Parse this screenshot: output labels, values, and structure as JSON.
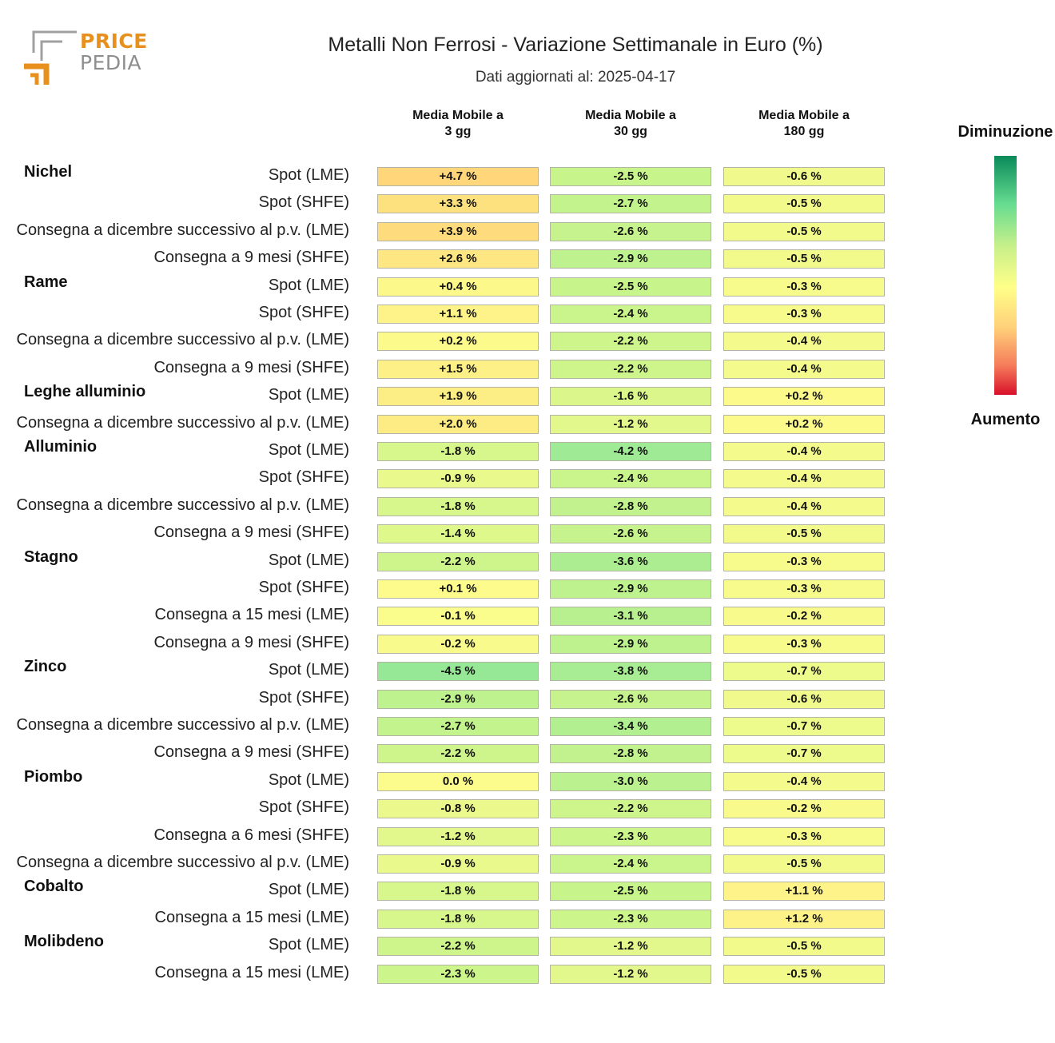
{
  "logo": {
    "price": "PRICE",
    "pedia": "PEDIA"
  },
  "title": "Metalli Non Ferrosi - Variazione Settimanale in Euro (%)",
  "subtitle": "Dati aggiornati al: 2025-04-17",
  "legend": {
    "top": "Diminuzione",
    "bottom": "Aumento"
  },
  "chart_data": {
    "type": "table",
    "columns": [
      [
        "Media Mobile a",
        "3 gg"
      ],
      [
        "Media Mobile a",
        "30 gg"
      ],
      [
        "Media Mobile a",
        "180 gg"
      ]
    ],
    "groups": [
      {
        "name": "Nichel",
        "rows": [
          {
            "label": "Spot (LME)",
            "values": [
              4.7,
              -2.5,
              -0.6
            ],
            "display": [
              "+4.7 %",
              "-2.5 %",
              "-0.6 %"
            ]
          },
          {
            "label": "Spot (SHFE)",
            "values": [
              3.3,
              -2.7,
              -0.5
            ],
            "display": [
              "+3.3 %",
              "-2.7 %",
              "-0.5 %"
            ]
          },
          {
            "label": "Consegna a dicembre successivo al p.v. (LME)",
            "values": [
              3.9,
              -2.6,
              -0.5
            ],
            "display": [
              "+3.9 %",
              "-2.6 %",
              "-0.5 %"
            ]
          },
          {
            "label": "Consegna a 9 mesi (SHFE)",
            "values": [
              2.6,
              -2.9,
              -0.5
            ],
            "display": [
              "+2.6 %",
              "-2.9 %",
              "-0.5 %"
            ]
          }
        ]
      },
      {
        "name": "Rame",
        "rows": [
          {
            "label": "Spot (LME)",
            "values": [
              0.4,
              -2.5,
              -0.3
            ],
            "display": [
              "+0.4 %",
              "-2.5 %",
              "-0.3 %"
            ]
          },
          {
            "label": "Spot (SHFE)",
            "values": [
              1.1,
              -2.4,
              -0.3
            ],
            "display": [
              "+1.1 %",
              "-2.4 %",
              "-0.3 %"
            ]
          },
          {
            "label": "Consegna a dicembre successivo al p.v. (LME)",
            "values": [
              0.2,
              -2.2,
              -0.4
            ],
            "display": [
              "+0.2 %",
              "-2.2 %",
              "-0.4 %"
            ]
          },
          {
            "label": "Consegna a 9 mesi (SHFE)",
            "values": [
              1.5,
              -2.2,
              -0.4
            ],
            "display": [
              "+1.5 %",
              "-2.2 %",
              "-0.4 %"
            ]
          }
        ]
      },
      {
        "name": "Leghe alluminio",
        "rows": [
          {
            "label": "Spot (LME)",
            "values": [
              1.9,
              -1.6,
              0.2
            ],
            "display": [
              "+1.9 %",
              "-1.6 %",
              "+0.2 %"
            ]
          },
          {
            "label": "Consegna a dicembre successivo al p.v. (LME)",
            "values": [
              2.0,
              -1.2,
              0.2
            ],
            "display": [
              "+2.0 %",
              "-1.2 %",
              "+0.2 %"
            ]
          }
        ]
      },
      {
        "name": "Alluminio",
        "rows": [
          {
            "label": "Spot (LME)",
            "values": [
              -1.8,
              -4.2,
              -0.4
            ],
            "display": [
              "-1.8 %",
              "-4.2 %",
              "-0.4 %"
            ]
          },
          {
            "label": "Spot (SHFE)",
            "values": [
              -0.9,
              -2.4,
              -0.4
            ],
            "display": [
              "-0.9 %",
              "-2.4 %",
              "-0.4 %"
            ]
          },
          {
            "label": "Consegna a dicembre successivo al p.v. (LME)",
            "values": [
              -1.8,
              -2.8,
              -0.4
            ],
            "display": [
              "-1.8 %",
              "-2.8 %",
              "-0.4 %"
            ]
          },
          {
            "label": "Consegna a 9 mesi (SHFE)",
            "values": [
              -1.4,
              -2.6,
              -0.5
            ],
            "display": [
              "-1.4 %",
              "-2.6 %",
              "-0.5 %"
            ]
          }
        ]
      },
      {
        "name": "Stagno",
        "rows": [
          {
            "label": "Spot (LME)",
            "values": [
              -2.2,
              -3.6,
              -0.3
            ],
            "display": [
              "-2.2 %",
              "-3.6 %",
              "-0.3 %"
            ]
          },
          {
            "label": "Spot (SHFE)",
            "values": [
              0.1,
              -2.9,
              -0.3
            ],
            "display": [
              "+0.1 %",
              "-2.9 %",
              "-0.3 %"
            ]
          },
          {
            "label": "Consegna a 15 mesi (LME)",
            "values": [
              -0.1,
              -3.1,
              -0.2
            ],
            "display": [
              "-0.1 %",
              "-3.1 %",
              "-0.2 %"
            ]
          },
          {
            "label": "Consegna a 9 mesi (SHFE)",
            "values": [
              -0.2,
              -2.9,
              -0.3
            ],
            "display": [
              "-0.2 %",
              "-2.9 %",
              "-0.3 %"
            ]
          }
        ]
      },
      {
        "name": "Zinco",
        "rows": [
          {
            "label": "Spot (LME)",
            "values": [
              -4.5,
              -3.8,
              -0.7
            ],
            "display": [
              "-4.5 %",
              "-3.8 %",
              "-0.7 %"
            ]
          },
          {
            "label": "Spot (SHFE)",
            "values": [
              -2.9,
              -2.6,
              -0.6
            ],
            "display": [
              "-2.9 %",
              "-2.6 %",
              "-0.6 %"
            ]
          },
          {
            "label": "Consegna a dicembre successivo al p.v. (LME)",
            "values": [
              -2.7,
              -3.4,
              -0.7
            ],
            "display": [
              "-2.7 %",
              "-3.4 %",
              "-0.7 %"
            ]
          },
          {
            "label": "Consegna a 9 mesi (SHFE)",
            "values": [
              -2.2,
              -2.8,
              -0.7
            ],
            "display": [
              "-2.2 %",
              "-2.8 %",
              "-0.7 %"
            ]
          }
        ]
      },
      {
        "name": "Piombo",
        "rows": [
          {
            "label": "Spot (LME)",
            "values": [
              0.0,
              -3.0,
              -0.4
            ],
            "display": [
              "0.0 %",
              "-3.0 %",
              "-0.4 %"
            ]
          },
          {
            "label": "Spot (SHFE)",
            "values": [
              -0.8,
              -2.2,
              -0.2
            ],
            "display": [
              "-0.8 %",
              "-2.2 %",
              "-0.2 %"
            ]
          },
          {
            "label": "Consegna a 6 mesi (SHFE)",
            "values": [
              -1.2,
              -2.3,
              -0.3
            ],
            "display": [
              "-1.2 %",
              "-2.3 %",
              "-0.3 %"
            ]
          },
          {
            "label": "Consegna a dicembre successivo al p.v. (LME)",
            "values": [
              -0.9,
              -2.4,
              -0.5
            ],
            "display": [
              "-0.9 %",
              "-2.4 %",
              "-0.5 %"
            ]
          }
        ]
      },
      {
        "name": "Cobalto",
        "rows": [
          {
            "label": "Spot (LME)",
            "values": [
              -1.8,
              -2.5,
              1.1
            ],
            "display": [
              "-1.8 %",
              "-2.5 %",
              "+1.1 %"
            ]
          },
          {
            "label": "Consegna a 15 mesi (LME)",
            "values": [
              -1.8,
              -2.3,
              1.2
            ],
            "display": [
              "-1.8 %",
              "-2.3 %",
              "+1.2 %"
            ]
          }
        ]
      },
      {
        "name": "Molibdeno",
        "rows": [
          {
            "label": "Spot (LME)",
            "values": [
              -2.2,
              -1.2,
              -0.5
            ],
            "display": [
              "-2.2 %",
              "-1.2 %",
              "-0.5 %"
            ]
          },
          {
            "label": "Consegna a 15 mesi (LME)",
            "values": [
              -2.3,
              -1.2,
              -0.5
            ],
            "display": [
              "-2.3 %",
              "-1.2 %",
              "-0.5 %"
            ]
          }
        ]
      }
    ]
  }
}
